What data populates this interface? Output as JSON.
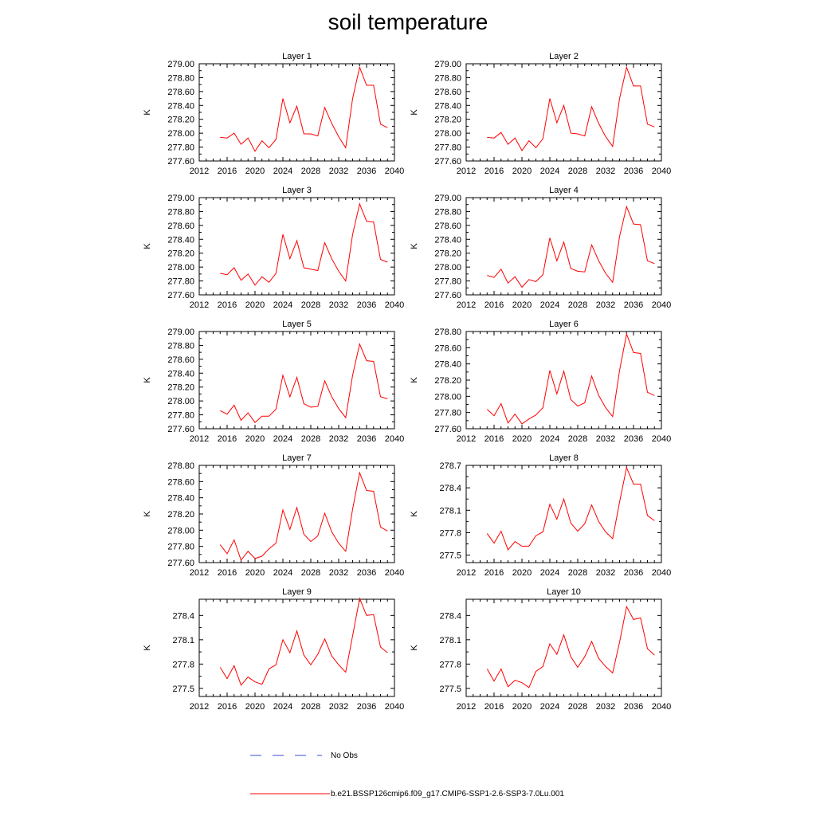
{
  "title": "soil temperature",
  "legend": {
    "obs_label": "No Obs",
    "run_label": "b.e21.BSSP126cmip6.f09_g17.CMIP6-SSP1-2.6-SSP3-7.0Lu.001",
    "obs_color": "#3b4bd8",
    "run_color": "#ff0000"
  },
  "chart_data": [
    {
      "type": "line",
      "title": "Layer 1",
      "ylabel": "K",
      "xlim": [
        2012,
        2040
      ],
      "ylim": [
        277.6,
        279.0
      ],
      "xticks": [
        2012,
        2016,
        2020,
        2024,
        2028,
        2032,
        2036,
        2040
      ],
      "yticks": [
        "277.60",
        "277.80",
        "278.00",
        "278.20",
        "278.40",
        "278.60",
        "278.80",
        "279.00"
      ],
      "x": [
        2015,
        2016,
        2017,
        2018,
        2019,
        2020,
        2021,
        2022,
        2023,
        2024,
        2025,
        2026,
        2027,
        2028,
        2029,
        2030,
        2031,
        2032,
        2033,
        2034,
        2035,
        2036,
        2037,
        2038,
        2039
      ],
      "y": [
        277.94,
        277.93,
        278.0,
        277.84,
        277.93,
        277.74,
        277.89,
        277.79,
        277.91,
        278.5,
        278.15,
        278.39,
        277.99,
        277.99,
        277.96,
        278.37,
        278.14,
        277.95,
        277.79,
        278.5,
        278.95,
        278.69,
        278.69,
        278.13,
        278.08
      ]
    },
    {
      "type": "line",
      "title": "Layer 2",
      "ylabel": "K",
      "xlim": [
        2012,
        2040
      ],
      "ylim": [
        277.6,
        279.0
      ],
      "xticks": [
        2012,
        2016,
        2020,
        2024,
        2028,
        2032,
        2036,
        2040
      ],
      "yticks": [
        "277.60",
        "277.80",
        "278.00",
        "278.20",
        "278.40",
        "278.60",
        "278.80",
        "279.00"
      ],
      "x": [
        2015,
        2016,
        2017,
        2018,
        2019,
        2020,
        2021,
        2022,
        2023,
        2024,
        2025,
        2026,
        2027,
        2028,
        2029,
        2030,
        2031,
        2032,
        2033,
        2034,
        2035,
        2036,
        2037,
        2038,
        2039
      ],
      "y": [
        277.94,
        277.93,
        278.01,
        277.84,
        277.93,
        277.75,
        277.89,
        277.79,
        277.92,
        278.5,
        278.15,
        278.4,
        278.0,
        277.99,
        277.96,
        278.38,
        278.14,
        277.95,
        277.81,
        278.5,
        278.95,
        278.68,
        278.68,
        278.13,
        278.09
      ]
    },
    {
      "type": "line",
      "title": "Layer 3",
      "ylabel": "K",
      "xlim": [
        2012,
        2040
      ],
      "ylim": [
        277.6,
        279.0
      ],
      "xticks": [
        2012,
        2016,
        2020,
        2024,
        2028,
        2032,
        2036,
        2040
      ],
      "yticks": [
        "277.60",
        "277.80",
        "278.00",
        "278.20",
        "278.40",
        "278.60",
        "278.80",
        "279.00"
      ],
      "x": [
        2015,
        2016,
        2017,
        2018,
        2019,
        2020,
        2021,
        2022,
        2023,
        2024,
        2025,
        2026,
        2027,
        2028,
        2029,
        2030,
        2031,
        2032,
        2033,
        2034,
        2035,
        2036,
        2037,
        2038,
        2039
      ],
      "y": [
        277.91,
        277.89,
        277.99,
        277.81,
        277.9,
        277.74,
        277.86,
        277.78,
        277.91,
        278.47,
        278.12,
        278.38,
        277.99,
        277.97,
        277.95,
        278.35,
        278.12,
        277.94,
        277.8,
        278.47,
        278.91,
        278.66,
        278.65,
        278.11,
        278.07
      ]
    },
    {
      "type": "line",
      "title": "Layer 4",
      "ylabel": "K",
      "xlim": [
        2012,
        2040
      ],
      "ylim": [
        277.6,
        279.0
      ],
      "xticks": [
        2012,
        2016,
        2020,
        2024,
        2028,
        2032,
        2036,
        2040
      ],
      "yticks": [
        "277.60",
        "277.80",
        "278.00",
        "278.20",
        "278.40",
        "278.60",
        "278.80",
        "279.00"
      ],
      "x": [
        2015,
        2016,
        2017,
        2018,
        2019,
        2020,
        2021,
        2022,
        2023,
        2024,
        2025,
        2026,
        2027,
        2028,
        2029,
        2030,
        2031,
        2032,
        2033,
        2034,
        2035,
        2036,
        2037,
        2038,
        2039
      ],
      "y": [
        277.88,
        277.85,
        277.97,
        277.77,
        277.86,
        277.71,
        277.82,
        277.79,
        277.89,
        278.42,
        278.09,
        278.36,
        277.98,
        277.94,
        277.93,
        278.32,
        278.09,
        277.91,
        277.78,
        278.44,
        278.87,
        278.62,
        278.61,
        278.09,
        278.05
      ]
    },
    {
      "type": "line",
      "title": "Layer 5",
      "ylabel": "K",
      "xlim": [
        2012,
        2040
      ],
      "ylim": [
        277.6,
        279.0
      ],
      "xticks": [
        2012,
        2016,
        2020,
        2024,
        2028,
        2032,
        2036,
        2040
      ],
      "yticks": [
        "277.60",
        "277.80",
        "278.00",
        "278.20",
        "278.40",
        "278.60",
        "278.80",
        "279.00"
      ],
      "x": [
        2015,
        2016,
        2017,
        2018,
        2019,
        2020,
        2021,
        2022,
        2023,
        2024,
        2025,
        2026,
        2027,
        2028,
        2029,
        2030,
        2031,
        2032,
        2033,
        2034,
        2035,
        2036,
        2037,
        2038,
        2039
      ],
      "y": [
        277.86,
        277.81,
        277.94,
        277.72,
        277.83,
        277.69,
        277.78,
        277.78,
        277.88,
        278.37,
        278.06,
        278.34,
        277.96,
        277.91,
        277.92,
        278.29,
        278.06,
        277.89,
        277.76,
        278.37,
        278.82,
        278.58,
        278.57,
        278.06,
        278.03
      ]
    },
    {
      "type": "line",
      "title": "Layer 6",
      "ylabel": "K",
      "xlim": [
        2012,
        2040
      ],
      "ylim": [
        277.6,
        278.8
      ],
      "xticks": [
        2012,
        2016,
        2020,
        2024,
        2028,
        2032,
        2036,
        2040
      ],
      "yticks": [
        "277.60",
        "277.80",
        "278.00",
        "278.20",
        "278.40",
        "278.60",
        "278.80"
      ],
      "x": [
        2015,
        2016,
        2017,
        2018,
        2019,
        2020,
        2021,
        2022,
        2023,
        2024,
        2025,
        2026,
        2027,
        2028,
        2029,
        2030,
        2031,
        2032,
        2033,
        2034,
        2035,
        2036,
        2037,
        2038,
        2039
      ],
      "y": [
        277.84,
        277.76,
        277.91,
        277.67,
        277.78,
        277.66,
        277.72,
        277.77,
        277.86,
        278.32,
        278.03,
        278.31,
        277.96,
        277.88,
        277.92,
        278.25,
        278.01,
        277.86,
        277.75,
        278.32,
        278.77,
        278.54,
        278.53,
        278.05,
        278.01
      ]
    },
    {
      "type": "line",
      "title": "Layer 7",
      "ylabel": "K",
      "xlim": [
        2012,
        2040
      ],
      "ylim": [
        277.6,
        278.8
      ],
      "xticks": [
        2012,
        2016,
        2020,
        2024,
        2028,
        2032,
        2036,
        2040
      ],
      "yticks": [
        "277.60",
        "277.80",
        "278.00",
        "278.20",
        "278.40",
        "278.60",
        "278.80"
      ],
      "x": [
        2015,
        2016,
        2017,
        2018,
        2019,
        2020,
        2021,
        2022,
        2023,
        2024,
        2025,
        2026,
        2027,
        2028,
        2029,
        2030,
        2031,
        2032,
        2033,
        2034,
        2035,
        2036,
        2037,
        2038,
        2039
      ],
      "y": [
        277.82,
        277.71,
        277.88,
        277.63,
        277.74,
        277.65,
        277.68,
        277.77,
        277.84,
        278.25,
        278.01,
        278.28,
        277.95,
        277.86,
        277.93,
        278.21,
        277.98,
        277.84,
        277.74,
        278.26,
        278.71,
        278.49,
        278.48,
        278.04,
        277.99
      ]
    },
    {
      "type": "line",
      "title": "Layer 8",
      "ylabel": "K",
      "xlim": [
        2012,
        2040
      ],
      "ylim": [
        277.4,
        278.7
      ],
      "xticks": [
        2012,
        2016,
        2020,
        2024,
        2028,
        2032,
        2036,
        2040
      ],
      "yticks": [
        "277.5",
        "277.8",
        "278.1",
        "278.4",
        "278.7"
      ],
      "x": [
        2015,
        2016,
        2017,
        2018,
        2019,
        2020,
        2021,
        2022,
        2023,
        2024,
        2025,
        2026,
        2027,
        2028,
        2029,
        2030,
        2031,
        2032,
        2033,
        2034,
        2035,
        2036,
        2037,
        2038,
        2039
      ],
      "y": [
        277.79,
        277.66,
        277.82,
        277.57,
        277.68,
        277.62,
        277.62,
        277.76,
        277.81,
        278.18,
        277.98,
        278.25,
        277.93,
        277.82,
        277.92,
        278.17,
        277.95,
        277.81,
        277.72,
        278.21,
        278.67,
        278.45,
        278.45,
        278.03,
        277.96
      ]
    },
    {
      "type": "line",
      "title": "Layer 9",
      "ylabel": "K",
      "xlim": [
        2012,
        2040
      ],
      "ylim": [
        277.4,
        278.6
      ],
      "xticks": [
        2012,
        2016,
        2020,
        2024,
        2028,
        2032,
        2036,
        2040
      ],
      "yticks": [
        "277.5",
        "277.8",
        "278.1",
        "278.4"
      ],
      "x": [
        2015,
        2016,
        2017,
        2018,
        2019,
        2020,
        2021,
        2022,
        2023,
        2024,
        2025,
        2026,
        2027,
        2028,
        2029,
        2030,
        2031,
        2032,
        2033,
        2034,
        2035,
        2036,
        2037,
        2038,
        2039
      ],
      "y": [
        277.76,
        277.62,
        277.78,
        277.54,
        277.64,
        277.58,
        277.55,
        277.74,
        277.79,
        278.1,
        277.94,
        278.21,
        277.91,
        277.79,
        277.92,
        278.11,
        277.9,
        277.79,
        277.7,
        278.15,
        278.61,
        278.4,
        278.41,
        278.01,
        277.94
      ]
    },
    {
      "type": "line",
      "title": "Layer 10",
      "ylabel": "K",
      "xlim": [
        2012,
        2040
      ],
      "ylim": [
        277.4,
        278.6
      ],
      "xticks": [
        2012,
        2016,
        2020,
        2024,
        2028,
        2032,
        2036,
        2040
      ],
      "yticks": [
        "277.5",
        "277.8",
        "278.1",
        "278.4"
      ],
      "x": [
        2015,
        2016,
        2017,
        2018,
        2019,
        2020,
        2021,
        2022,
        2023,
        2024,
        2025,
        2026,
        2027,
        2028,
        2029,
        2030,
        2031,
        2032,
        2033,
        2034,
        2035,
        2036,
        2037,
        2038,
        2039
      ],
      "y": [
        277.74,
        277.59,
        277.74,
        277.52,
        277.6,
        277.57,
        277.51,
        277.71,
        277.77,
        278.05,
        277.92,
        278.16,
        277.89,
        277.76,
        277.89,
        278.08,
        277.87,
        277.77,
        277.69,
        278.07,
        278.51,
        278.35,
        278.37,
        277.99,
        277.91
      ]
    }
  ]
}
